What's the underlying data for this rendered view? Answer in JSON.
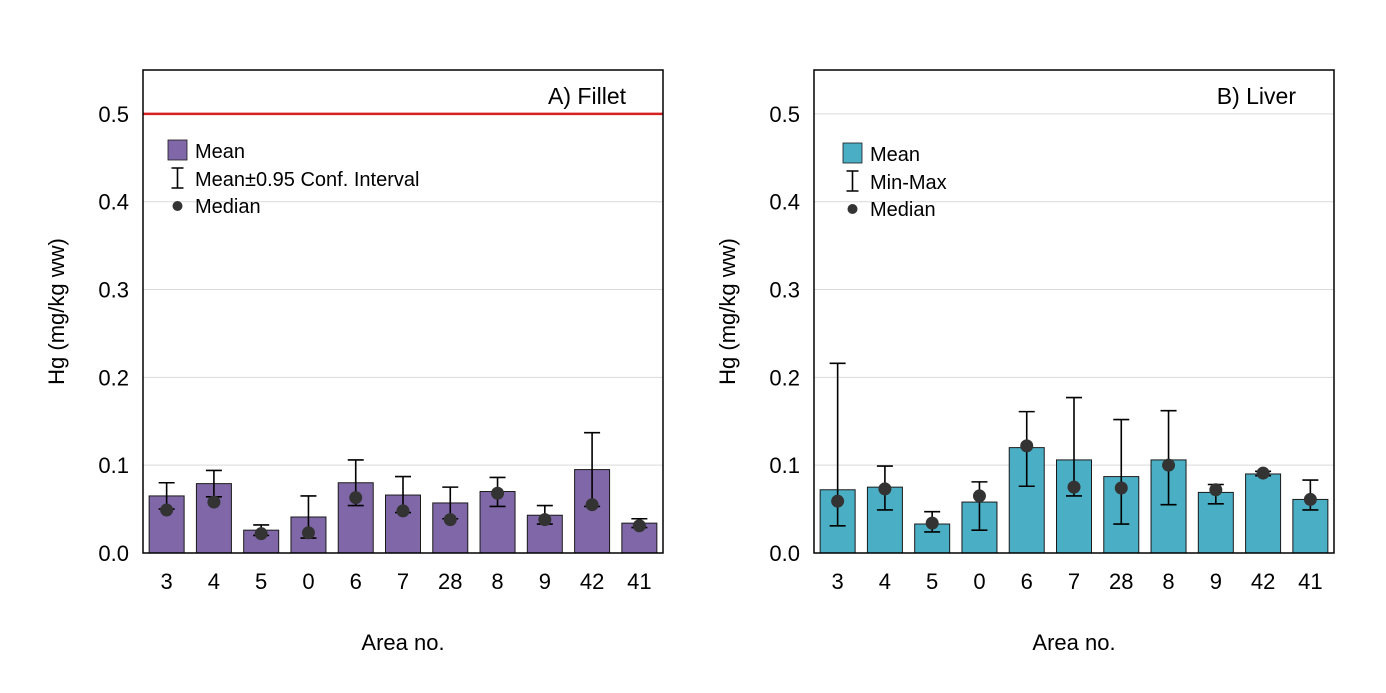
{
  "chart_data": [
    {
      "type": "bar",
      "title": "A) Fillet",
      "xlabel": "Area no.",
      "ylabel": "Hg (mg/kg ww)",
      "ylim": [
        0,
        0.55
      ],
      "yticks": [
        "0.0",
        "0.1",
        "0.2",
        "0.3",
        "0.4",
        "0.5"
      ],
      "grid": true,
      "categories": [
        "3",
        "4",
        "5",
        "0",
        "6",
        "7",
        "28",
        "8",
        "9",
        "42",
        "41"
      ],
      "series": [
        {
          "name": "Mean",
          "color": "#8068a8",
          "values": [
            0.065,
            0.079,
            0.026,
            0.041,
            0.08,
            0.066,
            0.057,
            0.07,
            0.043,
            0.095,
            0.034
          ],
          "err_low": [
            0.05,
            0.064,
            0.02,
            0.017,
            0.054,
            0.046,
            0.039,
            0.053,
            0.033,
            0.053,
            0.029
          ],
          "err_high": [
            0.08,
            0.094,
            0.032,
            0.065,
            0.106,
            0.087,
            0.075,
            0.086,
            0.054,
            0.137,
            0.039
          ]
        },
        {
          "name": "Median",
          "color": "#333333",
          "values": [
            0.049,
            0.058,
            0.022,
            0.023,
            0.063,
            0.048,
            0.038,
            0.068,
            0.038,
            0.055,
            0.031
          ]
        }
      ],
      "reference_line": {
        "value": 0.5,
        "color": "#d42020"
      },
      "legend": {
        "position": "top-left",
        "entries": [
          "Mean",
          "Mean±0.95 Conf. Interval",
          "Median"
        ]
      }
    },
    {
      "type": "bar",
      "title": "B) Liver",
      "xlabel": "Area no.",
      "ylabel": "Hg (mg/kg ww)",
      "ylim": [
        0,
        0.55
      ],
      "yticks": [
        "0.0",
        "0.1",
        "0.2",
        "0.3",
        "0.4",
        "0.5"
      ],
      "grid": true,
      "categories": [
        "3",
        "4",
        "5",
        "0",
        "6",
        "7",
        "28",
        "8",
        "9",
        "42",
        "41"
      ],
      "series": [
        {
          "name": "Mean",
          "color": "#4aaec4",
          "values": [
            0.072,
            0.075,
            0.033,
            0.058,
            0.12,
            0.106,
            0.087,
            0.106,
            0.069,
            0.09,
            0.061
          ],
          "err_low": [
            0.031,
            0.049,
            0.024,
            0.026,
            0.076,
            0.065,
            0.033,
            0.055,
            0.056,
            0.088,
            0.049
          ],
          "err_high": [
            0.216,
            0.099,
            0.047,
            0.081,
            0.161,
            0.177,
            0.152,
            0.162,
            0.078,
            0.093,
            0.083
          ]
        },
        {
          "name": "Median",
          "color": "#333333",
          "values": [
            0.059,
            0.073,
            0.034,
            0.065,
            0.122,
            0.075,
            0.074,
            0.1,
            0.072,
            0.091,
            0.061
          ]
        }
      ],
      "legend": {
        "position": "top-left",
        "entries": [
          "Mean",
          "Min-Max",
          "Median"
        ]
      }
    }
  ]
}
